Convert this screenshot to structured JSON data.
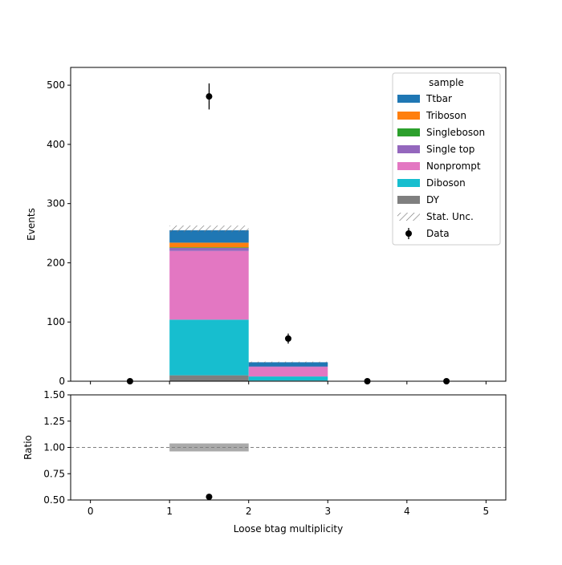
{
  "chart_data": [
    {
      "type": "bar",
      "stacked": true,
      "panel": "main",
      "ylabel": "Events",
      "ylim": [
        0,
        530
      ],
      "xlim": [
        -0.25,
        5.25
      ],
      "yticks": [
        0,
        100,
        200,
        300,
        400,
        500
      ],
      "bin_edges": [
        0,
        1,
        2,
        3,
        4,
        5
      ],
      "series": [
        {
          "name": "DY",
          "color": "#7f7f7f",
          "values": [
            0,
            10,
            1,
            0,
            0
          ]
        },
        {
          "name": "Diboson",
          "color": "#17becf",
          "values": [
            0,
            94,
            7,
            0,
            0
          ]
        },
        {
          "name": "Nonprompt",
          "color": "#e377c2",
          "values": [
            0,
            116,
            16,
            0,
            0
          ]
        },
        {
          "name": "Single top",
          "color": "#9467bd",
          "values": [
            0,
            5,
            1,
            0,
            0
          ]
        },
        {
          "name": "Singleboson",
          "color": "#2ca02c",
          "values": [
            0,
            1,
            0,
            0,
            0
          ]
        },
        {
          "name": "Triboson",
          "color": "#ff7f0e",
          "values": [
            0,
            8,
            0,
            0,
            0
          ]
        },
        {
          "name": "Ttbar",
          "color": "#1f77b4",
          "values": [
            0,
            21,
            7,
            0,
            0
          ]
        }
      ],
      "stat_unc": {
        "name": "Stat. Unc.",
        "total": [
          0,
          255,
          32,
          0,
          0
        ],
        "down": [
          0,
          252,
          31,
          0,
          0
        ],
        "up": [
          0,
          263,
          33,
          0,
          0
        ]
      },
      "data": {
        "name": "Data",
        "x": [
          0.5,
          1.5,
          2.5,
          3.5,
          4.5
        ],
        "y": [
          0,
          481,
          72,
          0,
          0
        ],
        "err": [
          0,
          22,
          8.5,
          0,
          0
        ]
      },
      "legend": {
        "title": "sample",
        "placement": "top-right",
        "entries": [
          "Ttbar",
          "Triboson",
          "Singleboson",
          "Single top",
          "Nonprompt",
          "Diboson",
          "DY",
          "Stat. Unc.",
          "Data"
        ]
      }
    },
    {
      "type": "scatter",
      "panel": "ratio",
      "xlabel": "Loose btag multiplicity",
      "ylabel": "Ratio",
      "ylim": [
        0.5,
        1.5
      ],
      "yticks": [
        "0.50",
        "0.75",
        "1.00",
        "1.25",
        "1.50"
      ],
      "xticks": [
        0,
        1,
        2,
        3,
        4,
        5
      ],
      "reference_line": 1.0,
      "unc_band": [
        {
          "x0": 1,
          "x1": 2,
          "lo": 0.962,
          "hi": 1.038
        }
      ],
      "points": [
        {
          "x": 1.5,
          "y": 0.53
        }
      ]
    }
  ],
  "colors": {
    "unc_band": "#aaaaaa",
    "data": "#000000"
  }
}
